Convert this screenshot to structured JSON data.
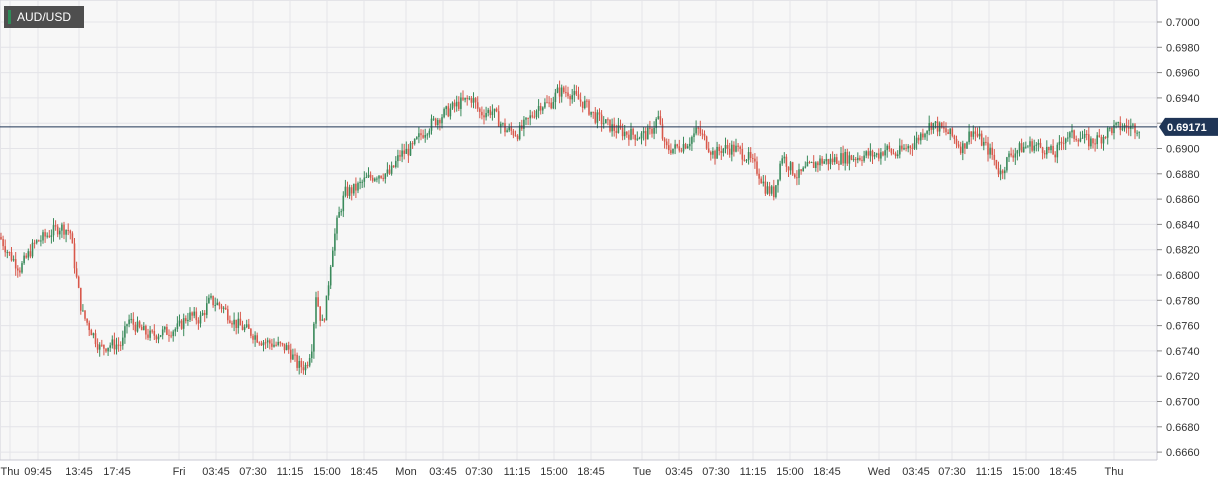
{
  "symbol": "AUD/USD",
  "colors": {
    "up": "#3a8a5b",
    "down": "#d8584b",
    "grid": "#e4e4e8",
    "bg": "#f7f7f7",
    "price_line": "#1f3556",
    "price_badge": "#1f3556"
  },
  "chart_data": {
    "type": "candlestick",
    "title": "AUD/USD",
    "ylim": [
      0.6655,
      0.7015
    ],
    "y_ticks": [
      "0.7000",
      "0.6980",
      "0.6960",
      "0.6940",
      "0.6920",
      "0.6900",
      "0.6880",
      "0.6860",
      "0.6840",
      "0.6820",
      "0.6800",
      "0.6780",
      "0.6760",
      "0.6740",
      "0.6720",
      "0.6700",
      "0.6680",
      "0.6660"
    ],
    "x_labels": [
      "Thu",
      "09:45",
      "13:45",
      "17:45",
      "Fri",
      "03:45",
      "07:30",
      "11:15",
      "15:00",
      "18:45",
      "Mon",
      "03:45",
      "07:30",
      "11:15",
      "15:00",
      "18:45",
      "Tue",
      "03:45",
      "07:30",
      "11:15",
      "15:00",
      "18:45",
      "Wed",
      "03:45",
      "07:30",
      "11:15",
      "15:00",
      "18:45",
      "Thu"
    ],
    "day_separators": [
      "Fri",
      "Mon",
      "Tue",
      "Wed",
      "Thu"
    ],
    "current_price": 0.69171,
    "current_price_label": "0.69171",
    "grid": true,
    "path": [
      [
        0,
        0.683
      ],
      [
        8,
        0.6818
      ],
      [
        20,
        0.6805
      ],
      [
        35,
        0.6825
      ],
      [
        48,
        0.6832
      ],
      [
        60,
        0.6838
      ],
      [
        70,
        0.6835
      ],
      [
        76,
        0.68
      ],
      [
        82,
        0.677
      ],
      [
        92,
        0.6755
      ],
      [
        100,
        0.6742
      ],
      [
        110,
        0.6745
      ],
      [
        122,
        0.6745
      ],
      [
        128,
        0.6765
      ],
      [
        138,
        0.6758
      ],
      [
        150,
        0.6752
      ],
      [
        165,
        0.6755
      ],
      [
        178,
        0.6758
      ],
      [
        188,
        0.6768
      ],
      [
        200,
        0.6765
      ],
      [
        210,
        0.678
      ],
      [
        222,
        0.6775
      ],
      [
        235,
        0.6762
      ],
      [
        250,
        0.6755
      ],
      [
        262,
        0.6748
      ],
      [
        275,
        0.6745
      ],
      [
        288,
        0.6742
      ],
      [
        298,
        0.6728
      ],
      [
        306,
        0.6728
      ],
      [
        312,
        0.6745
      ],
      [
        316,
        0.6785
      ],
      [
        322,
        0.676
      ],
      [
        326,
        0.6775
      ],
      [
        332,
        0.682
      ],
      [
        338,
        0.6845
      ],
      [
        345,
        0.6865
      ],
      [
        355,
        0.6868
      ],
      [
        365,
        0.6875
      ],
      [
        378,
        0.688
      ],
      [
        390,
        0.688
      ],
      [
        400,
        0.6895
      ],
      [
        412,
        0.69
      ],
      [
        420,
        0.691
      ],
      [
        432,
        0.692
      ],
      [
        445,
        0.6928
      ],
      [
        458,
        0.6935
      ],
      [
        472,
        0.694
      ],
      [
        480,
        0.6928
      ],
      [
        492,
        0.693
      ],
      [
        505,
        0.6915
      ],
      [
        518,
        0.6912
      ],
      [
        528,
        0.6922
      ],
      [
        540,
        0.6935
      ],
      [
        550,
        0.6935
      ],
      [
        558,
        0.6945
      ],
      [
        568,
        0.6945
      ],
      [
        576,
        0.694
      ],
      [
        585,
        0.6935
      ],
      [
        595,
        0.6925
      ],
      [
        605,
        0.692
      ],
      [
        615,
        0.6915
      ],
      [
        628,
        0.6912
      ],
      [
        640,
        0.691
      ],
      [
        650,
        0.6912
      ],
      [
        658,
        0.6925
      ],
      [
        665,
        0.69
      ],
      [
        675,
        0.69
      ],
      [
        688,
        0.6905
      ],
      [
        698,
        0.6915
      ],
      [
        706,
        0.6905
      ],
      [
        714,
        0.6895
      ],
      [
        722,
        0.69
      ],
      [
        735,
        0.69
      ],
      [
        748,
        0.6893
      ],
      [
        758,
        0.6882
      ],
      [
        766,
        0.6868
      ],
      [
        774,
        0.6865
      ],
      [
        782,
        0.6895
      ],
      [
        790,
        0.6885
      ],
      [
        798,
        0.6878
      ],
      [
        808,
        0.6885
      ],
      [
        820,
        0.689
      ],
      [
        830,
        0.689
      ],
      [
        842,
        0.6893
      ],
      [
        855,
        0.6893
      ],
      [
        868,
        0.6895
      ],
      [
        878,
        0.6895
      ],
      [
        886,
        0.69
      ],
      [
        895,
        0.6895
      ],
      [
        905,
        0.69
      ],
      [
        915,
        0.6905
      ],
      [
        925,
        0.6915
      ],
      [
        932,
        0.692
      ],
      [
        942,
        0.6915
      ],
      [
        952,
        0.691
      ],
      [
        962,
        0.69
      ],
      [
        972,
        0.6915
      ],
      [
        982,
        0.6905
      ],
      [
        992,
        0.6895
      ],
      [
        1000,
        0.688
      ],
      [
        1010,
        0.6895
      ],
      [
        1020,
        0.69
      ],
      [
        1032,
        0.6903
      ],
      [
        1045,
        0.69
      ],
      [
        1055,
        0.6895
      ],
      [
        1065,
        0.691
      ],
      [
        1078,
        0.691
      ],
      [
        1090,
        0.6905
      ],
      [
        1100,
        0.6908
      ],
      [
        1110,
        0.6915
      ],
      [
        1120,
        0.6917
      ],
      [
        1130,
        0.6917
      ],
      [
        1140,
        0.69171
      ]
    ]
  }
}
